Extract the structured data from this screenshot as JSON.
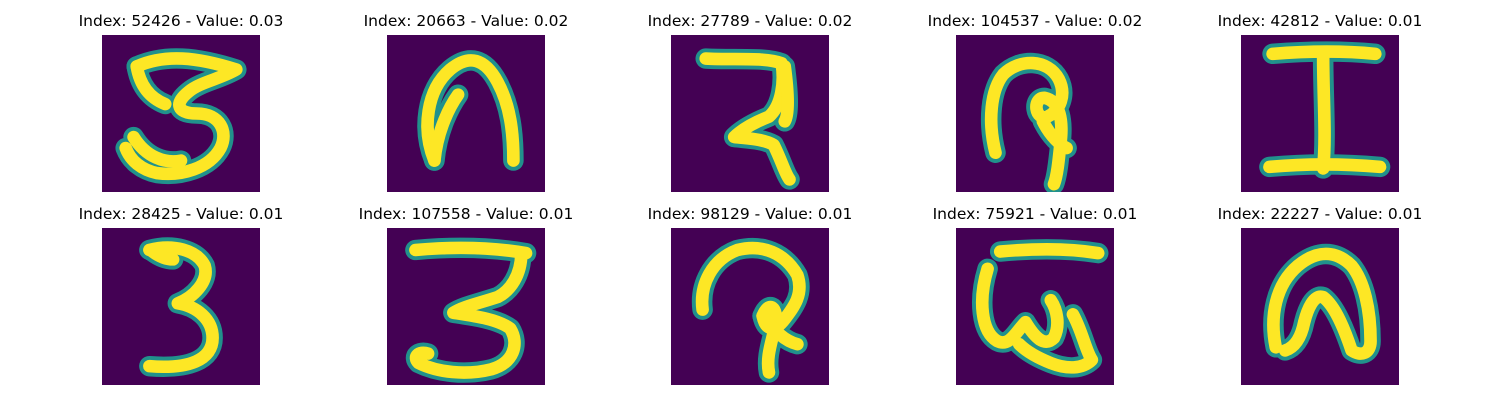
{
  "colors": {
    "background": "#440154",
    "edge": "#21918c",
    "stroke": "#fde725"
  },
  "panels": [
    {
      "title": "Index: 52426 - Value: 0.03",
      "glyph": "bangla-3"
    },
    {
      "title": "Index: 20663 - Value: 0.02",
      "glyph": "arch-blob"
    },
    {
      "title": "Index: 27789 - Value: 0.02",
      "glyph": "ra-like"
    },
    {
      "title": "Index: 104537 - Value: 0.02",
      "glyph": "loop-hook"
    },
    {
      "title": "Index: 42812 - Value: 0.01",
      "glyph": "capital-i"
    },
    {
      "title": "Index: 28425 - Value: 0.01",
      "glyph": "digit-3"
    },
    {
      "title": "Index: 107558 - Value: 0.01",
      "glyph": "bangla-3-bar"
    },
    {
      "title": "Index: 98129 - Value: 0.01",
      "glyph": "curl-hook"
    },
    {
      "title": "Index: 75921 - Value: 0.01",
      "glyph": "wave-bar"
    },
    {
      "title": "Index: 22227 - Value: 0.01",
      "glyph": "arch-blob-2"
    }
  ]
}
